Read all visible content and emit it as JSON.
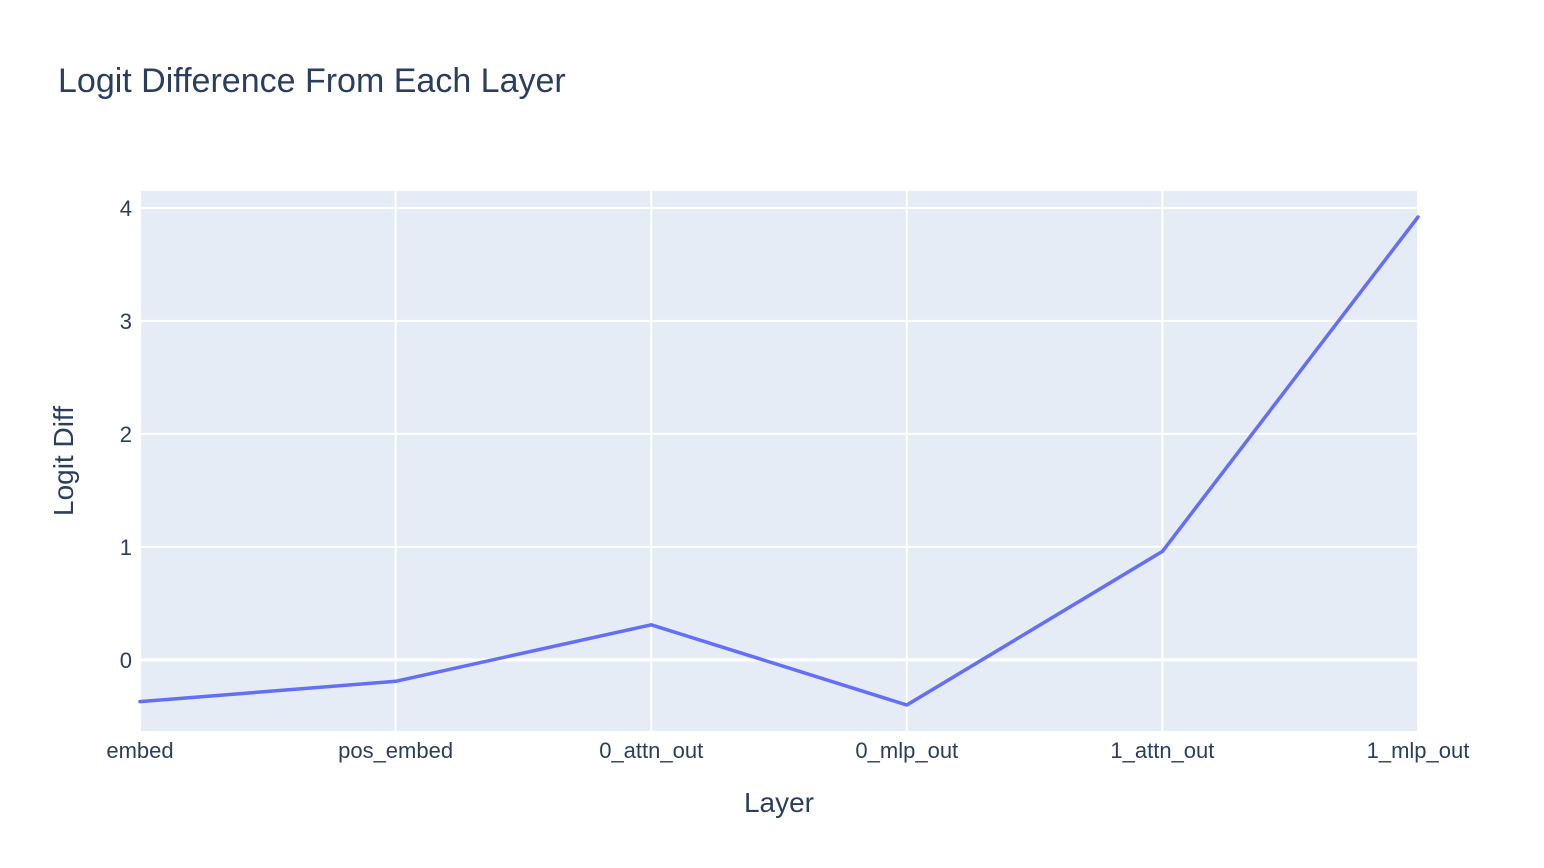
{
  "chart_data": {
    "type": "line",
    "title": "Logit Difference From Each Layer",
    "xlabel": "Layer",
    "ylabel": "Logit Diff",
    "categories": [
      "embed",
      "pos_embed",
      "0_attn_out",
      "0_mlp_out",
      "1_attn_out",
      "1_mlp_out"
    ],
    "series": [
      {
        "values": [
          -0.37,
          -0.19,
          0.31,
          -0.4,
          0.96,
          3.92
        ]
      }
    ],
    "y_ticks": [
      0,
      1,
      2,
      3,
      4
    ],
    "ylim": [
      -0.63,
      4.15
    ],
    "grid": true,
    "legend": "none",
    "colors": {
      "line": "#636efa",
      "plot_background": "#e5ecf6",
      "grid": "#ffffff",
      "text": "#2a3f5f"
    }
  }
}
